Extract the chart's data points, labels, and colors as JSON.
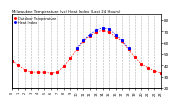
{
  "title": "Milwaukee Temperature (vs) Heat Index (Last 24 Hours)",
  "bg_color": "#ffffff",
  "plot_bg_color": "#ffffff",
  "grid_color": "#aaaaaa",
  "temp_color": "#ff0000",
  "heat_color": "#0000ff",
  "legend_temp": "Outdoor Temperature",
  "legend_heat": "Heat Index",
  "ylim": [
    20,
    85
  ],
  "xlim": [
    0,
    23
  ],
  "ytick_vals": [
    20,
    30,
    40,
    50,
    60,
    70,
    80
  ],
  "ytick_labels": [
    "20",
    "30",
    "40",
    "50",
    "60",
    "70",
    "80"
  ],
  "xtick_vals": [
    0,
    1,
    2,
    3,
    4,
    5,
    6,
    7,
    8,
    9,
    10,
    11,
    12,
    13,
    14,
    15,
    16,
    17,
    18,
    19,
    20,
    21,
    22,
    23
  ],
  "xtick_labels": [
    "0",
    "1",
    "2",
    "3",
    "4",
    "5",
    "6",
    "7",
    "8",
    "9",
    "10",
    "11",
    "12",
    "13",
    "14",
    "15",
    "16",
    "17",
    "18",
    "19",
    "20",
    "21",
    "22",
    "23"
  ],
  "temp_x": [
    0,
    1,
    2,
    3,
    4,
    5,
    6,
    7,
    8,
    9,
    10,
    11,
    12,
    13,
    14,
    15,
    16,
    17,
    18,
    19,
    20,
    21,
    22,
    23
  ],
  "temp_y": [
    44,
    40,
    36,
    34,
    34,
    34,
    33,
    34,
    39,
    46,
    54,
    61,
    66,
    69,
    71,
    69,
    65,
    61,
    54,
    47,
    41,
    38,
    35,
    33
  ],
  "heat_x": [
    10,
    11,
    12,
    13,
    14,
    15,
    16,
    17,
    18
  ],
  "heat_y": [
    55,
    62,
    67,
    71,
    73,
    72,
    67,
    62,
    55
  ]
}
